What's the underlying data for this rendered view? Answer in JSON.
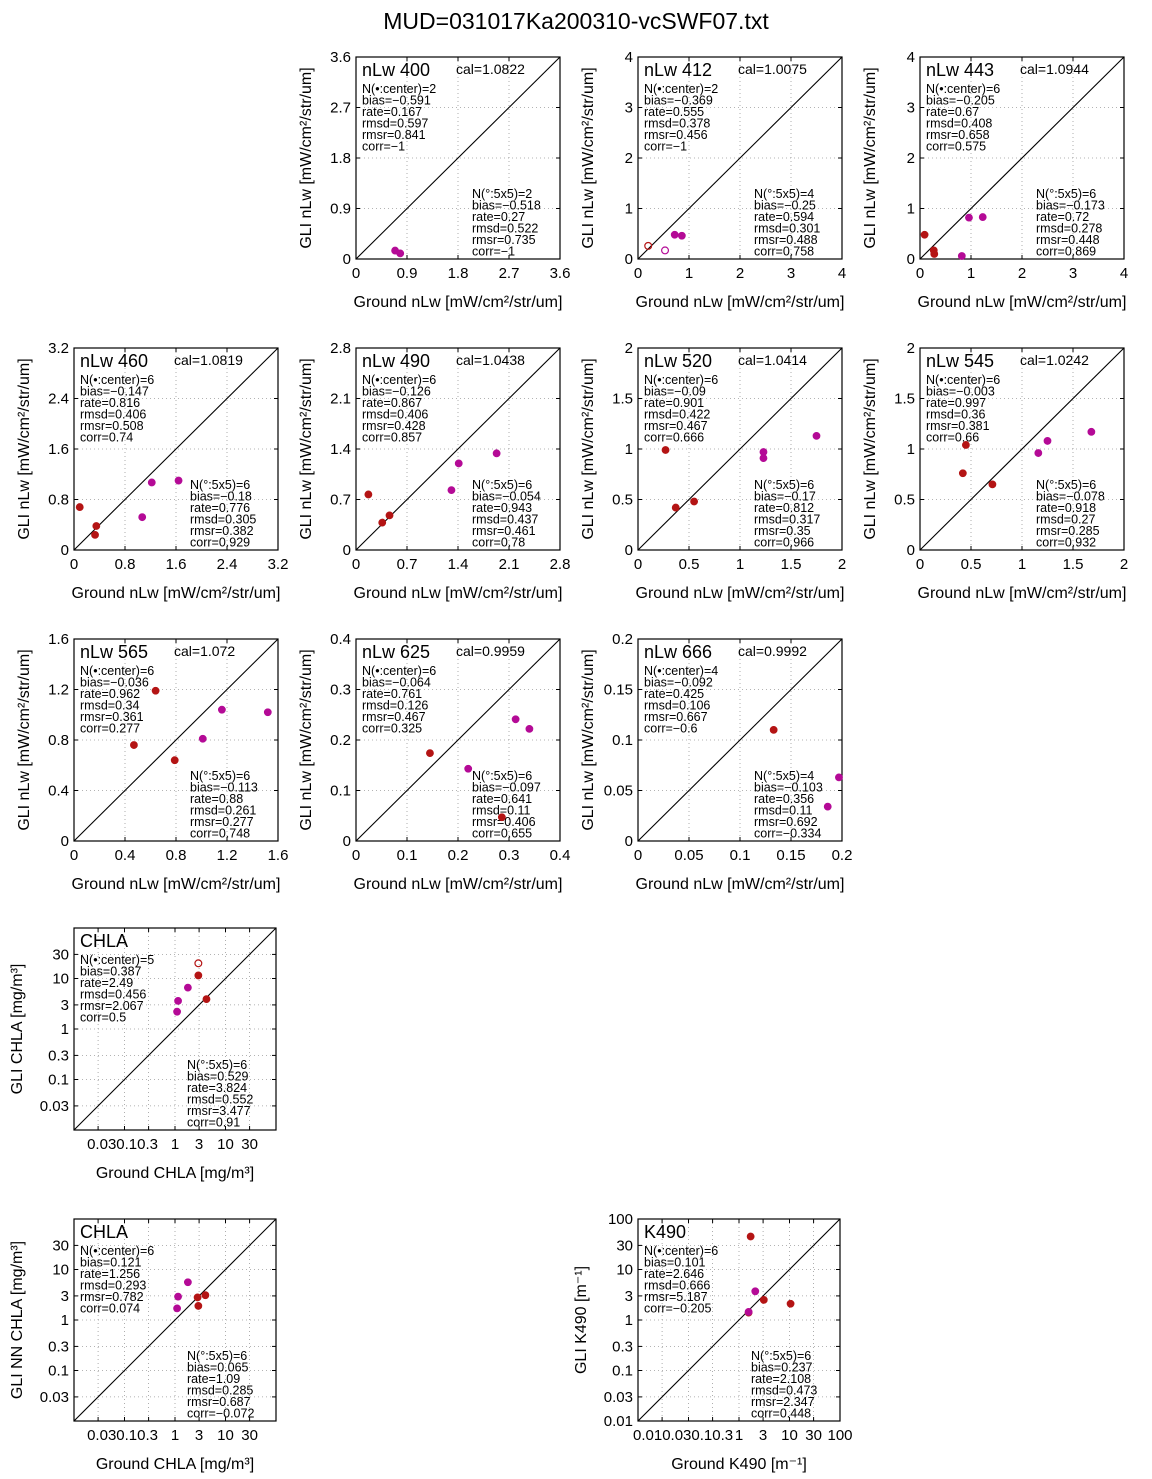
{
  "page": {
    "title": "MUD=031017Ka200310-vcSWF07.txt"
  },
  "chart_data": [
    {
      "type": "scatter",
      "id": "nlw400",
      "scale": "linear",
      "label": "nLw 400",
      "cal": "cal=1.0822",
      "xlabel": "Ground nLw [mW/cm²/str/um]",
      "ylabel": "GLI nLw [mW/cm²/str/um]",
      "lim": [
        0,
        3.6
      ],
      "ticks": [
        0,
        0.9,
        1.8,
        2.7,
        3.6
      ],
      "tick_labels": [
        "0",
        "0.9",
        "1.8",
        "2.7",
        "3.6"
      ],
      "stats_center": [
        "N(•:center)=2",
        "bias=−0.591",
        "rate=0.167",
        "rmsd=0.597",
        "rmsr=0.841",
        "corr=−1"
      ],
      "stats_5x5": [
        "N(°:5x5)=2",
        "bias=−0.518",
        "rate=0.27",
        "rmsd=0.522",
        "rmsr=0.735",
        "corr=−1"
      ],
      "points": [
        {
          "x": 0.69,
          "y": 0.15,
          "color": "#b40a96",
          "filled": true
        },
        {
          "x": 0.78,
          "y": 0.1,
          "color": "#b40a96",
          "filled": true
        }
      ]
    },
    {
      "type": "scatter",
      "id": "nlw412",
      "scale": "linear",
      "label": "nLw 412",
      "cal": "cal=1.0075",
      "xlabel": "Ground nLw [mW/cm²/str/um]",
      "ylabel": "GLI nLw [mW/cm²/str/um]",
      "lim": [
        0,
        4
      ],
      "ticks": [
        0,
        1,
        2,
        3,
        4
      ],
      "tick_labels": [
        "0",
        "1",
        "2",
        "3",
        "4"
      ],
      "stats_center": [
        "N(•:center)=2",
        "bias=−0.369",
        "rate=0.555",
        "rmsd=0.378",
        "rmsr=0.456",
        "corr=−1"
      ],
      "stats_5x5": [
        "N(°:5x5)=4",
        "bias=−0.25",
        "rate=0.594",
        "rmsd=0.301",
        "rmsr=0.488",
        "corr=0.758"
      ],
      "points": [
        {
          "x": 0.2,
          "y": 0.26,
          "color": "#b41414",
          "filled": false
        },
        {
          "x": 0.53,
          "y": 0.17,
          "color": "#b40a96",
          "filled": false
        },
        {
          "x": 0.72,
          "y": 0.48,
          "color": "#b40a96",
          "filled": true
        },
        {
          "x": 0.86,
          "y": 0.46,
          "color": "#b40a96",
          "filled": true
        }
      ]
    },
    {
      "type": "scatter",
      "id": "nlw443",
      "scale": "linear",
      "label": "nLw 443",
      "cal": "cal=1.0944",
      "xlabel": "Ground nLw [mW/cm²/str/um]",
      "ylabel": "GLI nLw [mW/cm²/str/um]",
      "lim": [
        0,
        4
      ],
      "ticks": [
        0,
        1,
        2,
        3,
        4
      ],
      "tick_labels": [
        "0",
        "1",
        "2",
        "3",
        "4"
      ],
      "stats_center": [
        "N(•:center)=6",
        "bias=−0.205",
        "rate=0.67",
        "rmsd=0.408",
        "rmsr=0.658",
        "corr=0.575"
      ],
      "stats_5x5": [
        "N(°:5x5)=6",
        "bias=−0.173",
        "rate=0.72",
        "rmsd=0.278",
        "rmsr=0.448",
        "corr=0.869"
      ],
      "points": [
        {
          "x": 0.09,
          "y": 0.48,
          "color": "#b41414",
          "filled": true
        },
        {
          "x": 0.27,
          "y": 0.17,
          "color": "#b41414",
          "filled": true
        },
        {
          "x": 0.28,
          "y": 0.1,
          "color": "#b41414",
          "filled": true
        },
        {
          "x": 0.82,
          "y": 0.06,
          "color": "#b40a96",
          "filled": true
        },
        {
          "x": 0.96,
          "y": 0.82,
          "color": "#b40a96",
          "filled": true
        },
        {
          "x": 1.23,
          "y": 0.83,
          "color": "#b40a96",
          "filled": true
        }
      ]
    },
    {
      "type": "scatter",
      "id": "nlw460",
      "scale": "linear",
      "label": "nLw 460",
      "cal": "cal=1.0819",
      "xlabel": "Ground nLw [mW/cm²/str/um]",
      "ylabel": "GLI nLw [mW/cm²/str/um]",
      "lim": [
        0,
        3.2
      ],
      "ticks": [
        0,
        0.8,
        1.6,
        2.4,
        3.2
      ],
      "tick_labels": [
        "0",
        "0.8",
        "1.6",
        "2.4",
        "3.2"
      ],
      "stats_center": [
        "N(•:center)=6",
        "bias=−0.147",
        "rate=0.816",
        "rmsd=0.406",
        "rmsr=0.508",
        "corr=0.74"
      ],
      "stats_5x5": [
        "N(°:5x5)=6",
        "bias=−0.18",
        "rate=0.776",
        "rmsd=0.305",
        "rmsr=0.382",
        "corr=0.929"
      ],
      "points": [
        {
          "x": 0.09,
          "y": 0.68,
          "color": "#b41414",
          "filled": true
        },
        {
          "x": 0.35,
          "y": 0.38,
          "color": "#b41414",
          "filled": true
        },
        {
          "x": 0.33,
          "y": 0.24,
          "color": "#b41414",
          "filled": true
        },
        {
          "x": 1.07,
          "y": 0.52,
          "color": "#b40a96",
          "filled": true
        },
        {
          "x": 1.22,
          "y": 1.07,
          "color": "#b40a96",
          "filled": true
        },
        {
          "x": 1.64,
          "y": 1.1,
          "color": "#b40a96",
          "filled": true
        }
      ]
    },
    {
      "type": "scatter",
      "id": "nlw490",
      "scale": "linear",
      "label": "nLw 490",
      "cal": "cal=1.0438",
      "xlabel": "Ground nLw [mW/cm²/str/um]",
      "ylabel": "GLI nLw [mW/cm²/str/um]",
      "lim": [
        0,
        2.8
      ],
      "ticks": [
        0,
        0.7,
        1.4,
        2.1,
        2.8
      ],
      "tick_labels": [
        "0",
        "0.7",
        "1.4",
        "2.1",
        "2.8"
      ],
      "stats_center": [
        "N(•:center)=6",
        "bias=−0.126",
        "rate=0.867",
        "rmsd=0.406",
        "rmsr=0.428",
        "corr=0.857"
      ],
      "stats_5x5": [
        "N(°:5x5)=6",
        "bias=−0.054",
        "rate=0.943",
        "rmsd=0.437",
        "rmsr=0.461",
        "corr=0.78"
      ],
      "points": [
        {
          "x": 0.17,
          "y": 0.77,
          "color": "#b41414",
          "filled": true
        },
        {
          "x": 0.36,
          "y": 0.38,
          "color": "#b41414",
          "filled": true
        },
        {
          "x": 0.46,
          "y": 0.48,
          "color": "#b41414",
          "filled": true
        },
        {
          "x": 1.31,
          "y": 0.83,
          "color": "#b40a96",
          "filled": true
        },
        {
          "x": 1.41,
          "y": 1.2,
          "color": "#b40a96",
          "filled": true
        },
        {
          "x": 1.93,
          "y": 1.34,
          "color": "#b40a96",
          "filled": true
        }
      ]
    },
    {
      "type": "scatter",
      "id": "nlw520",
      "scale": "linear",
      "label": "nLw 520",
      "cal": "cal=1.0414",
      "xlabel": "Ground nLw [mW/cm²/str/um]",
      "ylabel": "GLI nLw [mW/cm²/str/um]",
      "lim": [
        0,
        2
      ],
      "ticks": [
        0,
        0.5,
        1,
        1.5,
        2
      ],
      "tick_labels": [
        "0",
        "0.5",
        "1",
        "1.5",
        "2"
      ],
      "stats_center": [
        "N(•:center)=6",
        "bias=−0.09",
        "rate=0.901",
        "rmsd=0.422",
        "rmsr=0.467",
        "corr=0.666"
      ],
      "stats_5x5": [
        "N(°:5x5)=6",
        "bias=−0.17",
        "rate=0.812",
        "rmsd=0.317",
        "rmsr=0.35",
        "corr=0.966"
      ],
      "points": [
        {
          "x": 0.27,
          "y": 0.99,
          "color": "#b41414",
          "filled": true
        },
        {
          "x": 0.37,
          "y": 0.42,
          "color": "#b41414",
          "filled": true
        },
        {
          "x": 0.55,
          "y": 0.48,
          "color": "#b41414",
          "filled": true
        },
        {
          "x": 1.23,
          "y": 0.97,
          "color": "#b40a96",
          "filled": true
        },
        {
          "x": 1.23,
          "y": 0.91,
          "color": "#b40a96",
          "filled": true
        },
        {
          "x": 1.75,
          "y": 1.13,
          "color": "#b40a96",
          "filled": true
        }
      ]
    },
    {
      "type": "scatter",
      "id": "nlw545",
      "scale": "linear",
      "label": "nLw 545",
      "cal": "cal=1.0242",
      "xlabel": "Ground nLw [mW/cm²/str/um]",
      "ylabel": "GLI nLw [mW/cm²/str/um]",
      "lim": [
        0,
        2
      ],
      "ticks": [
        0,
        0.5,
        1,
        1.5,
        2
      ],
      "tick_labels": [
        "0",
        "0.5",
        "1",
        "1.5",
        "2"
      ],
      "stats_center": [
        "N(•:center)=6",
        "bias=−0.003",
        "rate=0.997",
        "rmsd=0.36",
        "rmsr=0.381",
        "corr=0.66"
      ],
      "stats_5x5": [
        "N(°:5x5)=6",
        "bias=−0.078",
        "rate=0.918",
        "rmsd=0.27",
        "rmsr=0.285",
        "corr=0.932"
      ],
      "points": [
        {
          "x": 0.42,
          "y": 0.76,
          "color": "#b41414",
          "filled": true
        },
        {
          "x": 0.45,
          "y": 1.04,
          "color": "#b41414",
          "filled": true
        },
        {
          "x": 0.71,
          "y": 0.65,
          "color": "#b41414",
          "filled": true
        },
        {
          "x": 1.16,
          "y": 0.96,
          "color": "#b40a96",
          "filled": true
        },
        {
          "x": 1.25,
          "y": 1.08,
          "color": "#b40a96",
          "filled": true
        },
        {
          "x": 1.68,
          "y": 1.17,
          "color": "#b40a96",
          "filled": true
        }
      ]
    },
    {
      "type": "scatter",
      "id": "nlw565",
      "scale": "linear",
      "label": "nLw 565",
      "cal": "cal=1.072",
      "xlabel": "Ground nLw [mW/cm²/str/um]",
      "ylabel": "GLI nLw [mW/cm²/str/um]",
      "lim": [
        0,
        1.6
      ],
      "ticks": [
        0,
        0.4,
        0.8,
        1.2,
        1.6
      ],
      "tick_labels": [
        "0",
        "0.4",
        "0.8",
        "1.2",
        "1.6"
      ],
      "stats_center": [
        "N(•:center)=6",
        "bias=−0.036",
        "rate=0.962",
        "rmsd=0.34",
        "rmsr=0.361",
        "corr=0.277"
      ],
      "stats_5x5": [
        "N(°:5x5)=6",
        "bias=−0.113",
        "rate=0.88",
        "rmsd=0.261",
        "rmsr=0.277",
        "corr=0.748"
      ],
      "points": [
        {
          "x": 0.47,
          "y": 0.76,
          "color": "#b41414",
          "filled": true
        },
        {
          "x": 0.64,
          "y": 1.19,
          "color": "#b41414",
          "filled": true
        },
        {
          "x": 0.79,
          "y": 0.64,
          "color": "#b41414",
          "filled": true
        },
        {
          "x": 1.01,
          "y": 0.81,
          "color": "#b40a96",
          "filled": true
        },
        {
          "x": 1.16,
          "y": 1.04,
          "color": "#b40a96",
          "filled": true
        },
        {
          "x": 1.52,
          "y": 1.02,
          "color": "#b40a96",
          "filled": true
        }
      ]
    },
    {
      "type": "scatter",
      "id": "nlw625",
      "scale": "linear",
      "label": "nLw 625",
      "cal": "cal=0.9959",
      "xlabel": "Ground nLw [mW/cm²/str/um]",
      "ylabel": "GLI nLw [mW/cm²/str/um]",
      "lim": [
        0,
        0.4
      ],
      "ticks": [
        0,
        0.1,
        0.2,
        0.3,
        0.4
      ],
      "tick_labels": [
        "0",
        "0.1",
        "0.2",
        "0.3",
        "0.4"
      ],
      "stats_center": [
        "N(•:center)=6",
        "bias=−0.064",
        "rate=0.761",
        "rmsd=0.126",
        "rmsr=0.467",
        "corr=0.325"
      ],
      "stats_5x5": [
        "N(°:5x5)=6",
        "bias=−0.097",
        "rate=0.641",
        "rmsd=0.11",
        "rmsr=0.406",
        "corr=0.655"
      ],
      "points": [
        {
          "x": 0.145,
          "y": 0.174,
          "color": "#b41414",
          "filled": true
        },
        {
          "x": 0.286,
          "y": 0.047,
          "color": "#b41414",
          "filled": true
        },
        {
          "x": 0.22,
          "y": 0.143,
          "color": "#b40a96",
          "filled": true
        },
        {
          "x": 0.313,
          "y": 0.241,
          "color": "#b40a96",
          "filled": true
        },
        {
          "x": 0.34,
          "y": 0.222,
          "color": "#b40a96",
          "filled": true
        }
      ]
    },
    {
      "type": "scatter",
      "id": "nlw666",
      "scale": "linear",
      "label": "nLw 666",
      "cal": "cal=0.9992",
      "xlabel": "Ground nLw [mW/cm²/str/um]",
      "ylabel": "GLI nLw [mW/cm²/str/um]",
      "lim": [
        0,
        0.2
      ],
      "ticks": [
        0,
        0.05,
        0.1,
        0.15,
        0.2
      ],
      "tick_labels": [
        "0",
        "0.05",
        "0.1",
        "0.15",
        "0.2"
      ],
      "stats_center": [
        "N(•:center)=4",
        "bias=−0.092",
        "rate=0.425",
        "rmsd=0.106",
        "rmsr=0.667",
        "corr=−0.6"
      ],
      "stats_5x5": [
        "N(°:5x5)=4",
        "bias=−0.103",
        "rate=0.356",
        "rmsd=0.11",
        "rmsr=0.692",
        "corr=−0.334"
      ],
      "points": [
        {
          "x": 0.133,
          "y": 0.11,
          "color": "#b41414",
          "filled": true
        },
        {
          "x": 0.186,
          "y": 0.034,
          "color": "#b40a96",
          "filled": true
        },
        {
          "x": 0.197,
          "y": 0.063,
          "color": "#b40a96",
          "filled": true
        }
      ]
    },
    {
      "type": "scatter",
      "id": "chla",
      "scale": "log",
      "label": "CHLA",
      "cal": "",
      "xlabel": "Ground CHLA [mg/m³]",
      "ylabel": "GLI CHLA [mg/m³]",
      "lim": [
        0.01,
        100
      ],
      "ticks": [
        0.03,
        0.1,
        0.3,
        1,
        3,
        10,
        30
      ],
      "tick_labels": [
        "0.03",
        "0.1",
        "0.3",
        "1",
        "3",
        "10",
        "30"
      ],
      "x_tick_text": "0.030.10.3",
      "stats_center": [
        "N(•:center)=5",
        "bias=0.387",
        "rate=2.49",
        "rmsd=0.456",
        "rmsr=2.067",
        "corr=0.5"
      ],
      "stats_5x5": [
        "N(°:5x5)=6",
        "bias=0.529",
        "rate=3.824",
        "rmsd=0.552",
        "rmsr=3.477",
        "corr=0.91"
      ],
      "points": [
        {
          "x": 2.9,
          "y": 20,
          "color": "#b41414",
          "filled": false
        },
        {
          "x": 2.9,
          "y": 11.5,
          "color": "#b41414",
          "filled": true
        },
        {
          "x": 4.2,
          "y": 3.9,
          "color": "#b41414",
          "filled": true
        },
        {
          "x": 1.8,
          "y": 6.6,
          "color": "#b40a96",
          "filled": true
        },
        {
          "x": 1.15,
          "y": 3.6,
          "color": "#b40a96",
          "filled": true
        },
        {
          "x": 1.1,
          "y": 2.2,
          "color": "#b40a96",
          "filled": true
        }
      ]
    },
    {
      "type": "scatter",
      "id": "chla_nn",
      "scale": "log",
      "label": "CHLA",
      "cal": "",
      "xlabel": "Ground CHLA [mg/m³]",
      "ylabel": "GLI NN CHLA [mg/m³]",
      "lim": [
        0.01,
        100
      ],
      "ticks": [
        0.03,
        0.1,
        0.3,
        1,
        3,
        10,
        30
      ],
      "tick_labels": [
        "0.03",
        "0.1",
        "0.3",
        "1",
        "3",
        "10",
        "30"
      ],
      "x_tick_text": "0.030.10.3",
      "stats_center": [
        "N(•:center)=6",
        "bias=0.121",
        "rate=1.256",
        "rmsd=0.293",
        "rmsr=0.782",
        "corr=0.074"
      ],
      "stats_5x5": [
        "N(°:5x5)=6",
        "bias=0.065",
        "rate=1.09",
        "rmsd=0.285",
        "rmsr=0.687",
        "corr=−0.072"
      ],
      "points": [
        {
          "x": 2.8,
          "y": 2.8,
          "color": "#b41414",
          "filled": true
        },
        {
          "x": 4.0,
          "y": 3.1,
          "color": "#b41414",
          "filled": true
        },
        {
          "x": 2.9,
          "y": 1.9,
          "color": "#b41414",
          "filled": true
        },
        {
          "x": 1.8,
          "y": 5.6,
          "color": "#b40a96",
          "filled": true
        },
        {
          "x": 1.15,
          "y": 2.9,
          "color": "#b40a96",
          "filled": true
        },
        {
          "x": 1.1,
          "y": 1.7,
          "color": "#b40a96",
          "filled": true
        }
      ]
    },
    {
      "type": "scatter",
      "id": "k490",
      "scale": "log",
      "label": "K490",
      "cal": "",
      "xlabel": "Ground K490 [m⁻¹]",
      "ylabel": "GLI K490 [m⁻¹]",
      "lim": [
        0.01,
        100
      ],
      "ticks": [
        0.01,
        0.03,
        0.1,
        0.3,
        1,
        3,
        10,
        30,
        100
      ],
      "tick_labels": [
        "0.01",
        "0.03",
        "0.1",
        "0.3",
        "1",
        "3",
        "10",
        "30",
        "100"
      ],
      "x_tick_text": "0.010.030.10.3",
      "stats_center": [
        "N(•:center)=6",
        "bias=0.101",
        "rate=2.646",
        "rmsd=0.666",
        "rmsr=5.187",
        "corr=−0.205"
      ],
      "stats_5x5": [
        "N(°:5x5)=6",
        "bias=0.237",
        "rate=2.108",
        "rmsd=0.473",
        "rmsr=2.347",
        "corr=0.448"
      ],
      "points": [
        {
          "x": 1.7,
          "y": 45,
          "color": "#b41414",
          "filled": true
        },
        {
          "x": 3.1,
          "y": 2.5,
          "color": "#b41414",
          "filled": true
        },
        {
          "x": 10.5,
          "y": 2.1,
          "color": "#b41414",
          "filled": true
        },
        {
          "x": 1.55,
          "y": 1.4,
          "color": "#b41414",
          "filled": true
        },
        {
          "x": 2.1,
          "y": 3.7,
          "color": "#b40a96",
          "filled": true
        },
        {
          "x": 1.55,
          "y": 1.45,
          "color": "#b40a96",
          "filled": true
        }
      ]
    }
  ]
}
